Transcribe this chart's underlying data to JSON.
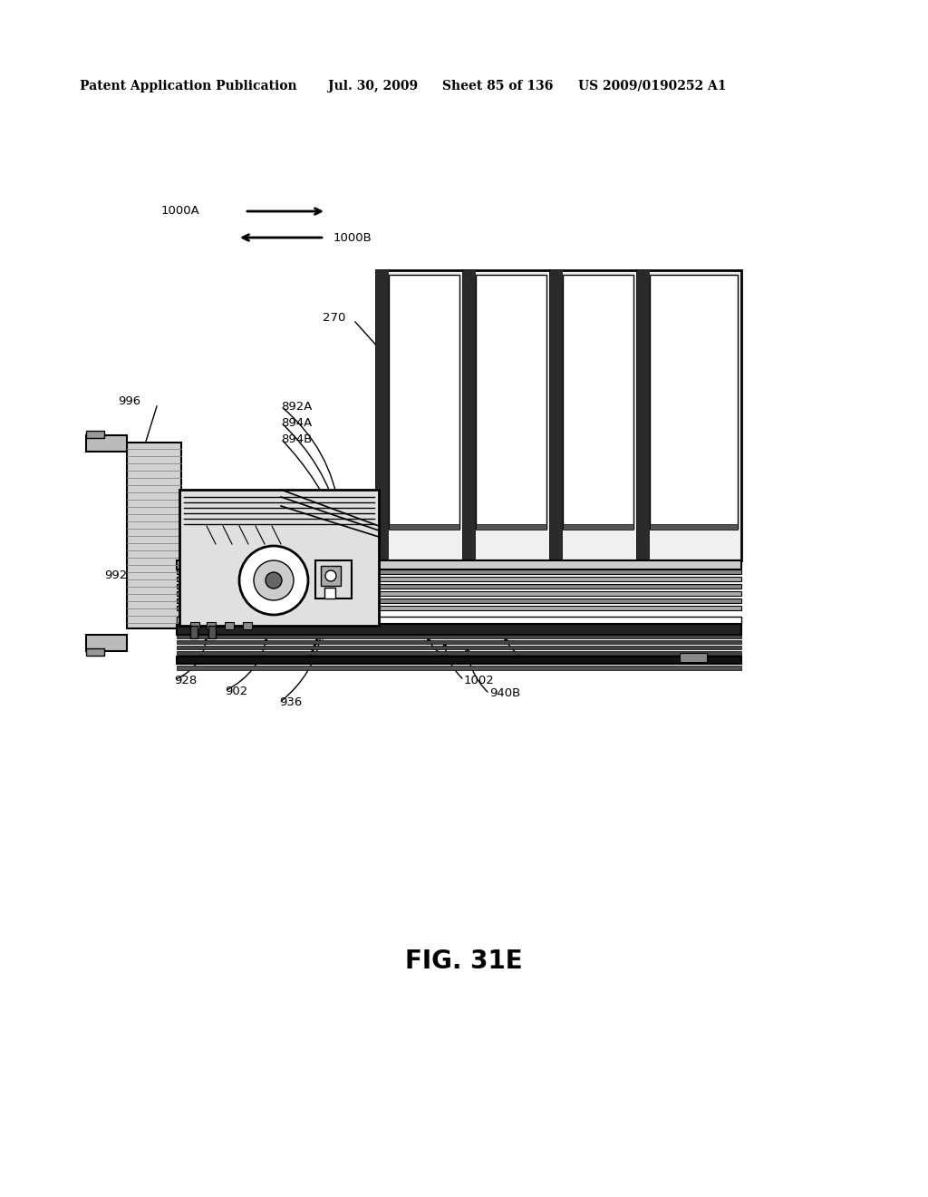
{
  "bg_color": "#ffffff",
  "header_text": "Patent Application Publication",
  "header_date": "Jul. 30, 2009",
  "header_sheet": "Sheet 85 of 136",
  "header_patent": "US 2009/0190252 A1",
  "fig_label": "FIG. 31E",
  "header_fontsize": 10,
  "fig_label_fontsize": 20,
  "label_fontsize": 9.5
}
